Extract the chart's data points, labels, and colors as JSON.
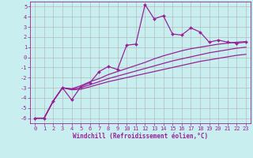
{
  "xlabel": "Windchill (Refroidissement éolien,°C)",
  "x_values": [
    0,
    1,
    2,
    3,
    4,
    5,
    6,
    7,
    8,
    9,
    10,
    11,
    12,
    13,
    14,
    15,
    16,
    17,
    18,
    19,
    20,
    21,
    22,
    23
  ],
  "line1_y": [
    -6,
    -6,
    -4.3,
    -3.0,
    -4.2,
    -2.9,
    -2.5,
    -1.4,
    -0.9,
    -1.2,
    1.2,
    1.3,
    5.2,
    3.8,
    4.1,
    2.3,
    2.2,
    2.9,
    2.5,
    1.5,
    1.7,
    1.5,
    1.4,
    1.5
  ],
  "line2_y": [
    -6,
    -6,
    -4.3,
    -3.0,
    -3.1,
    -2.8,
    -2.4,
    -2.1,
    -1.7,
    -1.4,
    -1.1,
    -0.8,
    -0.5,
    -0.15,
    0.15,
    0.4,
    0.65,
    0.85,
    1.0,
    1.15,
    1.3,
    1.4,
    1.5,
    1.55
  ],
  "line3_y": [
    -6,
    -6,
    -4.3,
    -3.0,
    -3.15,
    -3.0,
    -2.7,
    -2.4,
    -2.1,
    -1.85,
    -1.6,
    -1.35,
    -1.1,
    -0.85,
    -0.6,
    -0.35,
    -0.15,
    0.05,
    0.25,
    0.45,
    0.6,
    0.75,
    0.9,
    1.0
  ],
  "line4_y": [
    -6,
    -6,
    -4.3,
    -3.0,
    -3.2,
    -3.15,
    -2.9,
    -2.65,
    -2.4,
    -2.2,
    -2.0,
    -1.8,
    -1.6,
    -1.4,
    -1.2,
    -1.0,
    -0.8,
    -0.6,
    -0.4,
    -0.25,
    -0.1,
    0.05,
    0.2,
    0.3
  ],
  "line_color": "#992299",
  "bg_color": "#c8eef0",
  "grid_color": "#b0b0b0",
  "ylim": [
    -6.5,
    5.5
  ],
  "yticks": [
    -6,
    -5,
    -4,
    -3,
    -2,
    -1,
    0,
    1,
    2,
    3,
    4,
    5
  ],
  "xlim": [
    -0.5,
    23.5
  ],
  "marker": "D",
  "marker_size": 2.0,
  "linewidth": 0.9,
  "tick_fontsize": 5.0,
  "xlabel_fontsize": 5.5
}
